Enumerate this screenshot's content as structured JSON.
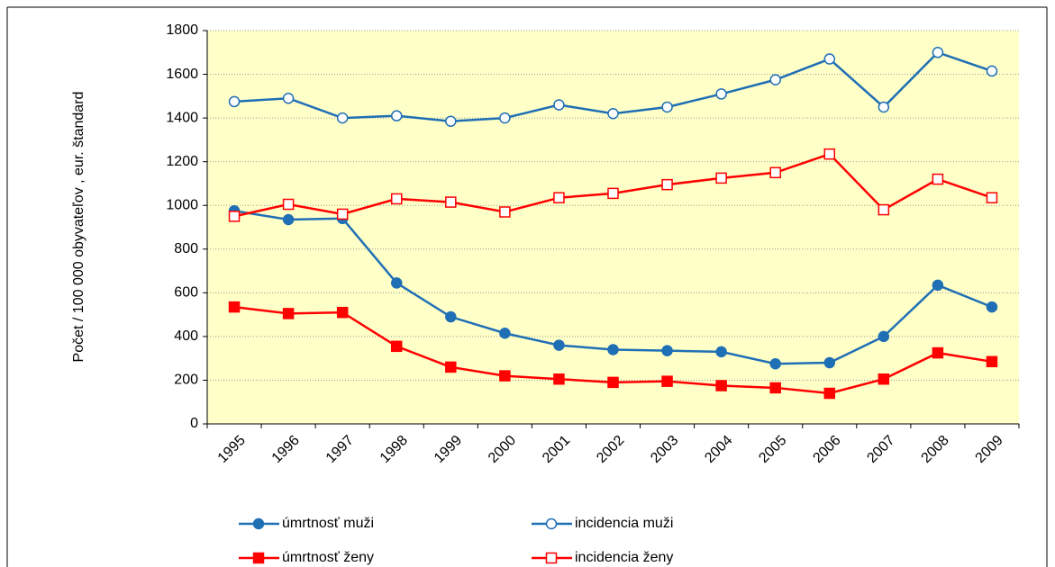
{
  "chart_data": {
    "type": "line",
    "y_label": "Počet / 100 000 obyvateľov , eur. štandard",
    "categories": [
      "1995",
      "1996",
      "1997",
      "1998",
      "1999",
      "2000",
      "2001",
      "2002",
      "2003",
      "2004",
      "2005",
      "2006",
      "2007",
      "2008",
      "2009"
    ],
    "ylim": [
      0,
      1800
    ],
    "yticks": [
      0,
      200,
      400,
      600,
      800,
      1000,
      1200,
      1400,
      1600,
      1800
    ],
    "grid": true,
    "plot_background": "#ffffc8",
    "series": [
      {
        "name": "úmrtnosť muži",
        "color": "#1f6fb5",
        "marker": "circle",
        "filled": true,
        "values": [
          975,
          935,
          940,
          645,
          490,
          415,
          360,
          340,
          335,
          330,
          275,
          280,
          400,
          635,
          535
        ]
      },
      {
        "name": "incidencia muži",
        "color": "#1f6fb5",
        "marker": "circle",
        "filled": false,
        "values": [
          1475,
          1490,
          1400,
          1410,
          1385,
          1400,
          1460,
          1420,
          1450,
          1510,
          1575,
          1670,
          1450,
          1700,
          1615
        ]
      },
      {
        "name": "úmrtnosť ženy",
        "color": "#ff0000",
        "marker": "square",
        "filled": true,
        "values": [
          535,
          505,
          510,
          355,
          260,
          220,
          205,
          190,
          195,
          175,
          165,
          140,
          205,
          325,
          285
        ]
      },
      {
        "name": "incidencia ženy",
        "color": "#ff0000",
        "marker": "square",
        "filled": false,
        "values": [
          950,
          1005,
          960,
          1030,
          1015,
          970,
          1035,
          1055,
          1095,
          1125,
          1150,
          1235,
          980,
          1120,
          1035
        ]
      }
    ]
  }
}
